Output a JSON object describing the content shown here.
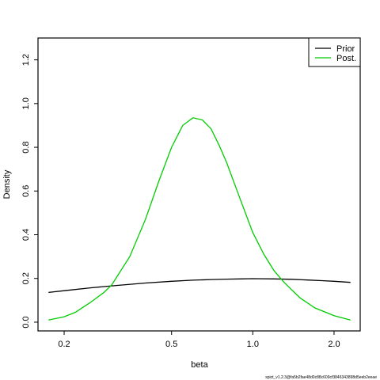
{
  "chart_data": {
    "type": "line",
    "x_scale": "log",
    "xlabel": "beta",
    "ylabel": "Density",
    "xlim": [
      0.16,
      2.5
    ],
    "ylim": [
      -0.04,
      1.3
    ],
    "x_ticks": [
      0.2,
      0.5,
      1.0,
      2.0
    ],
    "x_tick_labels": [
      "0.2",
      "0.5",
      "1.0",
      "2.0"
    ],
    "y_ticks": [
      0.0,
      0.2,
      0.4,
      0.6,
      0.8,
      1.0,
      1.2
    ],
    "y_tick_labels": [
      "0.0",
      "0.2",
      "0.4",
      "0.6",
      "0.8",
      "1.0",
      "1.2"
    ],
    "grid": false,
    "legend_position": "top-right",
    "series": [
      {
        "name": "Prior",
        "color": "#000000",
        "x": [
          0.175,
          0.2,
          0.25,
          0.3,
          0.4,
          0.5,
          0.6,
          0.7,
          0.8,
          0.9,
          1.0,
          1.2,
          1.4,
          1.6,
          1.8,
          2.0,
          2.3
        ],
        "y": [
          0.136,
          0.144,
          0.157,
          0.166,
          0.179,
          0.187,
          0.192,
          0.195,
          0.197,
          0.198,
          0.199,
          0.198,
          0.196,
          0.193,
          0.19,
          0.187,
          0.182
        ]
      },
      {
        "name": "Post.",
        "color": "#00cc00",
        "x": [
          0.175,
          0.2,
          0.22,
          0.25,
          0.28,
          0.3,
          0.35,
          0.4,
          0.45,
          0.5,
          0.55,
          0.6,
          0.65,
          0.7,
          0.75,
          0.8,
          0.9,
          1.0,
          1.1,
          1.2,
          1.3,
          1.4,
          1.5,
          1.7,
          2.0,
          2.3
        ],
        "y": [
          0.01,
          0.025,
          0.045,
          0.09,
          0.135,
          0.17,
          0.3,
          0.47,
          0.65,
          0.8,
          0.9,
          0.935,
          0.925,
          0.885,
          0.81,
          0.73,
          0.56,
          0.41,
          0.31,
          0.235,
          0.185,
          0.145,
          0.11,
          0.065,
          0.03,
          0.01
        ]
      }
    ]
  },
  "footnote": "spict_v1.2.3@fa5b2fae48d0c88c609cf3846343898d5eeb2eeae"
}
